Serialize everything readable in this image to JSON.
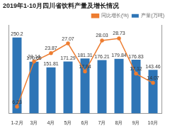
{
  "chart_data": {
    "type": "bar",
    "title": "2019年1-10月四川省饮料产量及增长情况",
    "categories": [
      "1-2月",
      "3月",
      "4月",
      "5月",
      "6月",
      "7月",
      "8月",
      "9月",
      "10月"
    ],
    "series": [
      {
        "name": "产量(万吨)",
        "type": "bar",
        "color": "#2e75b6",
        "values": [
          250.2,
          170.65,
          151.81,
          171.29,
          181.31,
          176.21,
          179.84,
          176.83,
          143.46
        ]
      },
      {
        "name": "同比增长(%)",
        "type": "line",
        "axis": "y2",
        "color": "#ed7d31",
        "marker": "circle",
        "values": [
          6.23,
          21.14,
          23.87,
          27.07,
          17.84,
          28.03,
          28.73,
          17.12,
          14.07
        ]
      }
    ],
    "ylim": [
      0,
      290
    ],
    "y2lim": [
      4,
      33
    ],
    "grid": false,
    "legend": "top",
    "data_labels": true,
    "tick_labels": "x"
  }
}
